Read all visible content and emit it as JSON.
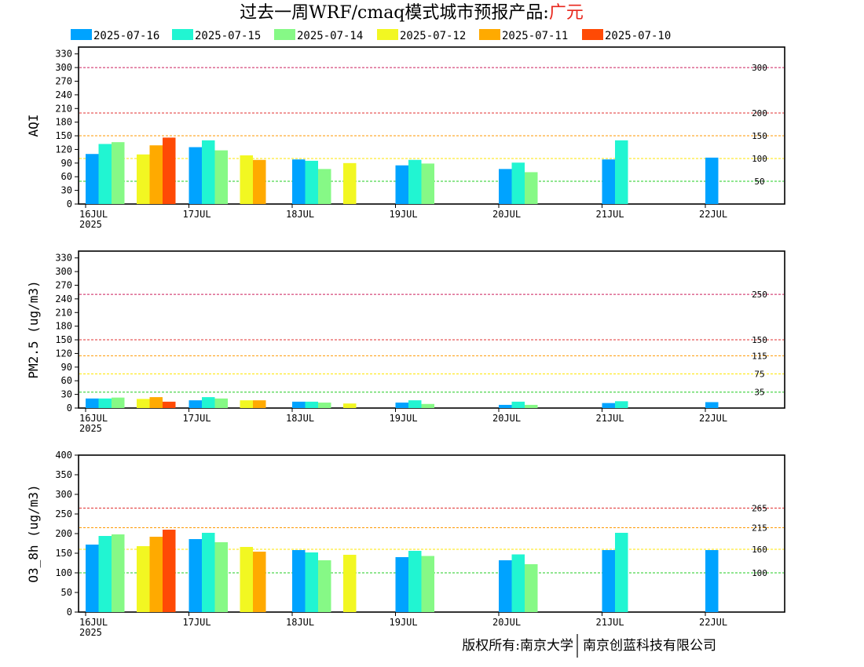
{
  "title": {
    "main": "过去一周WRF/cmaq模式城市预报产品:",
    "city": "广元"
  },
  "colors": {
    "title_text": "#000000",
    "city_text": "#e8261c",
    "series": [
      "#00a3ff",
      "#21f5d2",
      "#86f986",
      "#f2f722",
      "#ffaa00",
      "#ff4a05"
    ],
    "ref_lines": {
      "red": "#e03030",
      "magenta": "#cc1f5c",
      "orange": "#ff9900",
      "yellow": "#ffe600",
      "green": "#22cc22"
    }
  },
  "legend": [
    "2025-07-16",
    "2025-07-15",
    "2025-07-14",
    "2025-07-12",
    "2025-07-11",
    "2025-07-10"
  ],
  "footer": {
    "left": "版权所有:南京大学",
    "right": "南京创蓝科技有限公司"
  },
  "chart_data": [
    {
      "type": "bar",
      "ylabel": "AQI",
      "ylim": [
        0,
        345
      ],
      "yticks": [
        0,
        30,
        60,
        90,
        120,
        150,
        180,
        210,
        240,
        270,
        300,
        330
      ],
      "categories": [
        "16JUL",
        "17JUL",
        "18JUL",
        "19JUL",
        "20JUL",
        "21JUL",
        "22JUL"
      ],
      "first_category_sublabel": "2025",
      "series": [
        {
          "name": "2025-07-16",
          "values": [
            110,
            125,
            98,
            85,
            77,
            98,
            102
          ]
        },
        {
          "name": "2025-07-15",
          "values": [
            132,
            140,
            95,
            97,
            91,
            140,
            null
          ]
        },
        {
          "name": "2025-07-14",
          "values": [
            136,
            118,
            77,
            89,
            70,
            null,
            null
          ]
        },
        {
          "name": "2025-07-12",
          "values": [
            null,
            109,
            107,
            90,
            null,
            null,
            null
          ]
        },
        {
          "name": "2025-07-11",
          "values": [
            null,
            129,
            97,
            null,
            null,
            null,
            null
          ]
        },
        {
          "name": "2025-07-10",
          "values": [
            null,
            146,
            null,
            null,
            null,
            null,
            null
          ]
        }
      ],
      "reference_lines": [
        {
          "value": 300,
          "label": "300",
          "color": "magenta"
        },
        {
          "value": 200,
          "label": "200",
          "color": "red"
        },
        {
          "value": 150,
          "label": "150",
          "color": "orange"
        },
        {
          "value": 100,
          "label": "100",
          "color": "yellow"
        },
        {
          "value": 50,
          "label": "50",
          "color": "green"
        }
      ]
    },
    {
      "type": "bar",
      "ylabel": "PM2.5 (ug/m3)",
      "ylim": [
        0,
        345
      ],
      "yticks": [
        0,
        30,
        60,
        90,
        120,
        150,
        180,
        210,
        240,
        270,
        300,
        330
      ],
      "categories": [
        "16JUL",
        "17JUL",
        "18JUL",
        "19JUL",
        "20JUL",
        "21JUL",
        "22JUL"
      ],
      "first_category_sublabel": "2025",
      "series": [
        {
          "name": "2025-07-16",
          "values": [
            21,
            17,
            14,
            12,
            7,
            11,
            13
          ]
        },
        {
          "name": "2025-07-15",
          "values": [
            21,
            24,
            14,
            17,
            14,
            15,
            null
          ]
        },
        {
          "name": "2025-07-14",
          "values": [
            23,
            21,
            12,
            9,
            7,
            null,
            null
          ]
        },
        {
          "name": "2025-07-12",
          "values": [
            null,
            20,
            17,
            10,
            null,
            null,
            null
          ]
        },
        {
          "name": "2025-07-11",
          "values": [
            null,
            24,
            17,
            null,
            null,
            null,
            null
          ]
        },
        {
          "name": "2025-07-10",
          "values": [
            null,
            14,
            null,
            null,
            null,
            null,
            null
          ]
        }
      ],
      "reference_lines": [
        {
          "value": 250,
          "label": "250",
          "color": "magenta"
        },
        {
          "value": 150,
          "label": "150",
          "color": "red"
        },
        {
          "value": 115,
          "label": "115",
          "color": "orange"
        },
        {
          "value": 75,
          "label": "75",
          "color": "yellow"
        },
        {
          "value": 35,
          "label": "35",
          "color": "green"
        }
      ]
    },
    {
      "type": "bar",
      "ylabel": "O3_8h (ug/m3)",
      "ylim": [
        0,
        400
      ],
      "yticks": [
        0,
        50,
        100,
        150,
        200,
        250,
        300,
        350,
        400
      ],
      "categories": [
        "16JUL",
        "17JUL",
        "18JUL",
        "19JUL",
        "20JUL",
        "21JUL",
        "22JUL"
      ],
      "first_category_sublabel": "2025",
      "series": [
        {
          "name": "2025-07-16",
          "values": [
            172,
            186,
            158,
            140,
            132,
            158,
            158
          ]
        },
        {
          "name": "2025-07-15",
          "values": [
            194,
            202,
            152,
            156,
            147,
            202,
            null
          ]
        },
        {
          "name": "2025-07-14",
          "values": [
            198,
            178,
            132,
            143,
            122,
            null,
            null
          ]
        },
        {
          "name": "2025-07-12",
          "values": [
            null,
            168,
            166,
            146,
            null,
            null,
            null
          ]
        },
        {
          "name": "2025-07-11",
          "values": [
            null,
            192,
            154,
            null,
            null,
            null,
            null
          ]
        },
        {
          "name": "2025-07-10",
          "values": [
            null,
            210,
            null,
            null,
            null,
            null,
            null
          ]
        }
      ],
      "reference_lines": [
        {
          "value": 265,
          "label": "265",
          "color": "red"
        },
        {
          "value": 215,
          "label": "215",
          "color": "orange"
        },
        {
          "value": 160,
          "label": "160",
          "color": "yellow"
        },
        {
          "value": 100,
          "label": "100",
          "color": "green"
        }
      ]
    }
  ]
}
